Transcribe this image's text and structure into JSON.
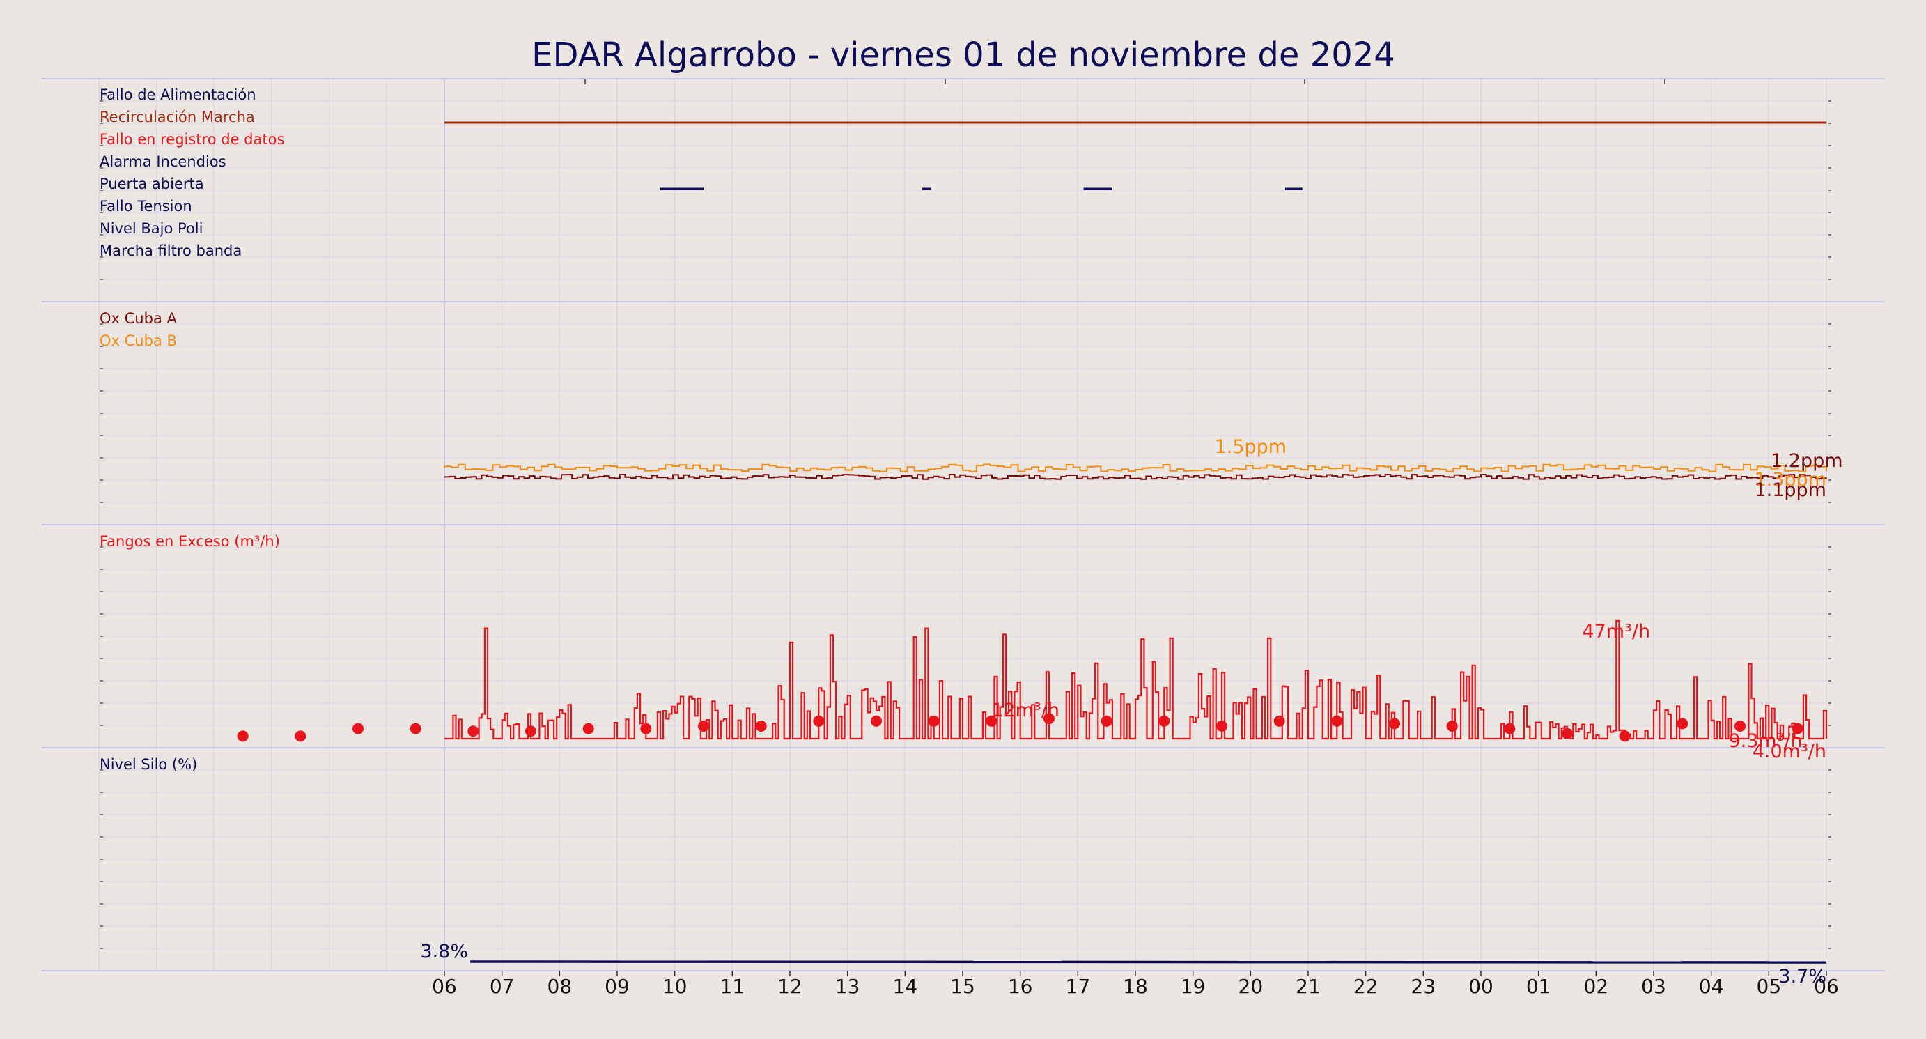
{
  "title": "EDAR Algarrobo   -   viernes 01 de noviembre de 2024",
  "colors": {
    "background": "#ebe6e1",
    "grid": "#dcd7e2",
    "navy": "#0c0c5a",
    "darkred": "#7a0a0a",
    "brown": "#a12a12",
    "red": "#e8141b",
    "orange": "#f28c14"
  },
  "chart_data": {
    "type": "line",
    "x_ticks": [
      "06",
      "07",
      "08",
      "09",
      "10",
      "11",
      "12",
      "13",
      "14",
      "15",
      "16",
      "17",
      "18",
      "19",
      "20",
      "21",
      "22",
      "23",
      "00",
      "01",
      "02",
      "03",
      "04",
      "05",
      "06"
    ],
    "panels": [
      {
        "name": "digital-signals",
        "labels": [
          {
            "text": "Fallo de Alimentación",
            "color": "#0c0c5a"
          },
          {
            "text": "Recirculación Marcha",
            "color": "#a12a12"
          },
          {
            "text": "Fallo en registro de datos",
            "color": "#e8141b"
          },
          {
            "text": "Alarma Incendios",
            "color": "#0c0c5a"
          },
          {
            "text": "Puerta abierta",
            "color": "#0c0c5a"
          },
          {
            "text": "Fallo Tension",
            "color": "#0c0c5a"
          },
          {
            "text": "Nivel Bajo Poli",
            "color": "#0c0c5a"
          },
          {
            "text": "Marcha filtro banda",
            "color": "#0c0c5a"
          }
        ],
        "active_intervals": [
          {
            "signal": "Recirculación Marcha",
            "intervals": [
              [
                0,
                24
              ]
            ]
          },
          {
            "signal": "Puerta abierta",
            "intervals": [
              [
                3.75,
                4.5
              ],
              [
                8.3,
                8.45
              ],
              [
                11.1,
                11.6
              ],
              [
                14.6,
                14.9
              ]
            ]
          }
        ]
      },
      {
        "name": "oxygen",
        "series": [
          {
            "name": "Ox Cuba A",
            "color": "#7a0a0a",
            "unit": "ppm",
            "level": 1.1,
            "end_label": "1.1ppm"
          },
          {
            "name": "Ox Cuba B",
            "color": "#f28c14",
            "unit": "ppm",
            "level": 1.3,
            "end_label": "1.3ppm",
            "max_label": "1.5ppm",
            "max_at": 14
          },
          {
            "name": "",
            "color": "#7a0a0a",
            "end_label": "1.2ppm"
          }
        ]
      },
      {
        "name": "fangos",
        "series": [
          {
            "name": "Fangos en Exceso (m³/h)",
            "color": "#e8141b",
            "unit": "m³/h",
            "hourly_means": [
              3,
              3,
              4,
              4,
              5,
              5,
              7,
              7,
              7,
              7,
              8,
              7,
              7,
              5,
              7,
              7,
              6,
              5,
              4,
              2,
              1,
              6,
              5,
              4
            ],
            "pre_window_points": [
              1,
              1,
              4,
              4
            ],
            "peak": 47,
            "peak_at": 20.35,
            "labels": [
              {
                "text": "47m³/h",
                "x": 20.35
              },
              {
                "text": "12m³/h",
                "x": 9.5
              },
              {
                "text": "9.3m³/h",
                "x": 22.3
              },
              {
                "text": "4.0m³/h",
                "x": 24
              }
            ]
          }
        ]
      },
      {
        "name": "silo",
        "series": [
          {
            "name": "Nivel Silo (%)",
            "color": "#0c0c5a",
            "unit": "%",
            "start": 3.8,
            "end": 3.7,
            "start_label": "3.8%",
            "end_label": "3.7%"
          }
        ]
      }
    ]
  }
}
